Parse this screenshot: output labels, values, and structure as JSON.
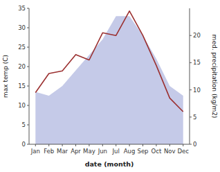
{
  "chart_data": {
    "type": "line",
    "categories": [
      "Jan",
      "Feb",
      "Mar",
      "Apr",
      "May",
      "Jun",
      "Jul",
      "Aug",
      "Sep",
      "Oct",
      "Nov",
      "Dec"
    ],
    "series": [
      {
        "type": "area",
        "color": "#c5cae8",
        "values": [
          13.5,
          12.5,
          15.0,
          19.0,
          23.0,
          27.0,
          33.0,
          33.0,
          28.0,
          22.0,
          15.0,
          12.5
        ]
      },
      {
        "type": "line",
        "color": "#9b3030",
        "axis": "y2",
        "values": [
          9.5,
          13.0,
          13.5,
          16.5,
          15.5,
          20.5,
          20.0,
          24.5,
          20.0,
          14.5,
          8.5,
          6.0
        ]
      }
    ],
    "xlabel": "date (month)",
    "ylabel": "max temp (C)",
    "y2label": "med. precipitation (kg/m2)",
    "ylim": [
      0,
      35
    ],
    "yticks": [
      0,
      5,
      10,
      15,
      20,
      25,
      30,
      35
    ],
    "y2lim": [
      0,
      25
    ],
    "y2ticks": [
      0,
      5,
      10,
      15,
      20
    ],
    "grid": false
  }
}
